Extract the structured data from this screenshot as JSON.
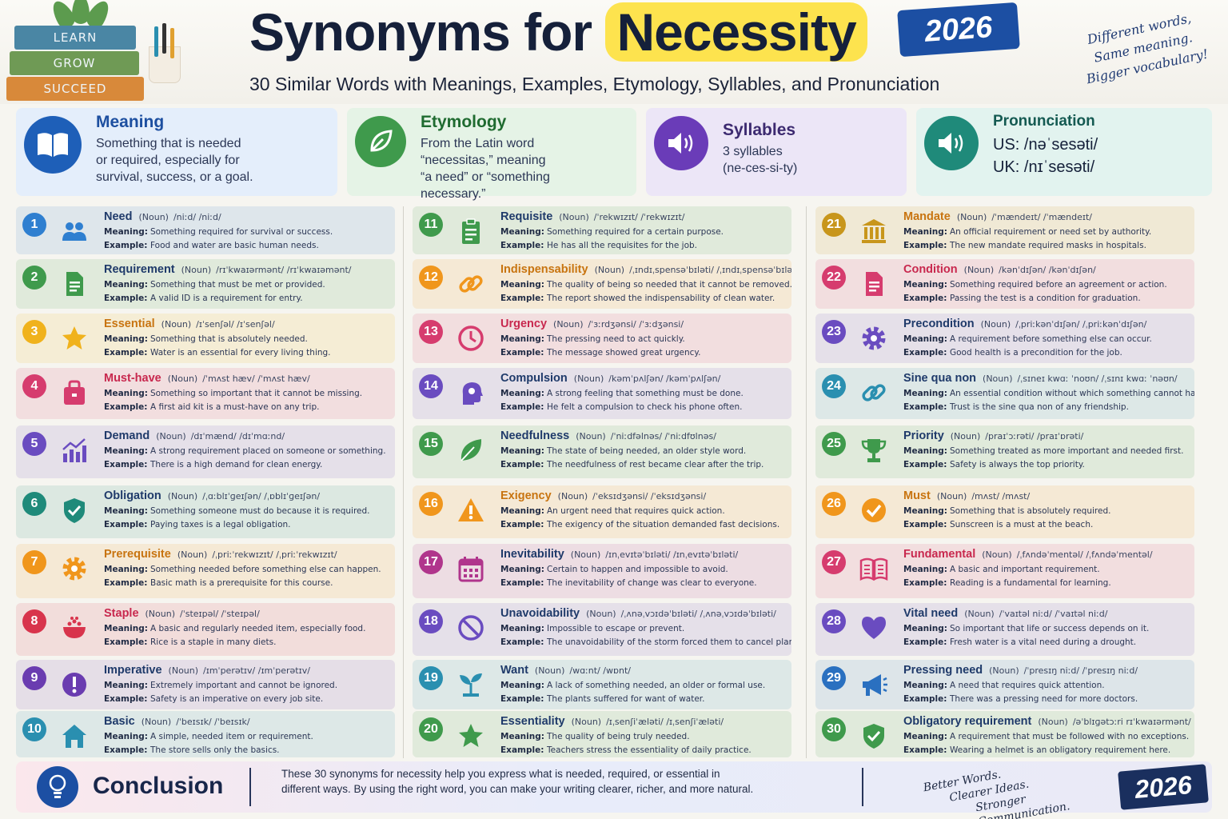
{
  "header": {
    "books": [
      "LEARN",
      "GROW",
      "SUCCEED"
    ],
    "title_pre": "Synonyms for ",
    "title_highlight": "Necessity",
    "year": "2026",
    "subtitle": "30 Similar Words with Meanings, Examples, Etymology, Syllables, and Pronunciation",
    "note": [
      "Different words,",
      "Same meaning.",
      "Bigger vocabulary!"
    ]
  },
  "info": {
    "meaning": {
      "title": "Meaning",
      "lines": [
        "Something that is needed",
        "or required, especially for",
        "survival, success, or a goal."
      ]
    },
    "etymology": {
      "title": "Etymology",
      "lines": [
        "From the Latin word",
        "“necessitas,” meaning",
        "“a need” or “something",
        "necessary.”"
      ]
    },
    "syllables": {
      "title": "Syllables",
      "lines": [
        "3 syllables",
        "(ne-ces-si-ty)"
      ]
    },
    "pronunciation": {
      "title": "Pronunciation",
      "us": "US:  /nəˈsesəti/",
      "uk": "UK:  /nɪˈsesəti/"
    }
  },
  "labels": {
    "meaning": "Meaning:",
    "example": "Example:"
  },
  "words": [
    {
      "n": "1",
      "w": "Need",
      "pos": "(Noun)",
      "ipa": "/niːd/   /niːd/",
      "m": "Something required for survival or success.",
      "e": "Food and water are basic human needs.",
      "c": "#2f7fd0",
      "icon": "people-icon"
    },
    {
      "n": "2",
      "w": "Requirement",
      "pos": "(Noun)",
      "ipa": "/rɪˈkwaɪərmənt/   /rɪˈkwaɪəmənt/",
      "m": "Something that must be met or provided.",
      "e": "A valid ID is a requirement for entry.",
      "c": "#3f9a4c",
      "icon": "document-icon"
    },
    {
      "n": "3",
      "w": "Essential",
      "pos": "(Noun)",
      "ipa": "/ɪˈsenʃəl/   /ɪˈsenʃəl/",
      "m": "Something that is absolutely needed.",
      "e": "Water is an essential for every living thing.",
      "c": "#f0b21c",
      "icon": "star-icon"
    },
    {
      "n": "4",
      "w": "Must-have",
      "pos": "(Noun)",
      "ipa": "/ˈmʌst hæv/   /ˈmʌst hæv/",
      "m": "Something so important that it cannot be missing.",
      "e": "A first aid kit is a must-have on any trip.",
      "c": "#d63c6e",
      "icon": "bag-icon"
    },
    {
      "n": "5",
      "w": "Demand",
      "pos": "(Noun)",
      "ipa": "/dɪˈmænd/   /dɪˈmɑːnd/",
      "m": "A strong requirement placed on someone or something.",
      "e": "There is a high demand for clean energy.",
      "c": "#6a4cc0",
      "icon": "chart-icon"
    },
    {
      "n": "6",
      "w": "Obligation",
      "pos": "(Noun)",
      "ipa": "/ˌɑːblɪˈɡeɪʃən/   /ˌɒblɪˈɡeɪʃən/",
      "m": "Something someone must do because it is required.",
      "e": "Paying taxes is a legal obligation.",
      "c": "#1f8a7a",
      "icon": "shield-icon"
    },
    {
      "n": "7",
      "w": "Prerequisite",
      "pos": "(Noun)",
      "ipa": "/ˌpriːˈrekwɪzɪt/   /ˌpriːˈrekwɪzɪt/",
      "m": "Something needed before something else can happen.",
      "e": "Basic math is a prerequisite for this course.",
      "c": "#f0961c",
      "icon": "gear-icon"
    },
    {
      "n": "8",
      "w": "Staple",
      "pos": "(Noun)",
      "ipa": "/ˈsteɪpəl/   /ˈsteɪpəl/",
      "m": "A basic and regularly needed item, especially food.",
      "e": "Rice is a staple in many diets.",
      "c": "#d8344c",
      "icon": "bowl-icon"
    },
    {
      "n": "9",
      "w": "Imperative",
      "pos": "(Noun)",
      "ipa": "/ɪmˈperətɪv/   /ɪmˈperətɪv/",
      "m": "Extremely important and cannot be ignored.",
      "e": "Safety is an imperative on every job site.",
      "c": "#6a3cb0",
      "icon": "exclamation-icon"
    },
    {
      "n": "10",
      "w": "Basic",
      "pos": "(Noun)",
      "ipa": "/ˈbeɪsɪk/   /ˈbeɪsɪk/",
      "m": "A simple, needed item or requirement.",
      "e": "The store sells only the basics.",
      "c": "#2a8fb0",
      "icon": "home-icon"
    },
    {
      "n": "11",
      "w": "Requisite",
      "pos": "(Noun)",
      "ipa": "/ˈrekwɪzɪt/   /ˈrekwɪzɪt/",
      "m": "Something required for a certain purpose.",
      "e": "He has all the requisites for the job.",
      "c": "#3f9a4c",
      "icon": "clipboard-icon"
    },
    {
      "n": "12",
      "w": "Indispensability",
      "pos": "(Noun)",
      "ipa": "/ˌɪndɪˌspensəˈbɪləti/   /ˌɪndɪˌspensəˈbɪləti/",
      "m": "The quality of being so needed that it cannot be removed.",
      "e": "The report showed the indispensability of clean water.",
      "c": "#f0961c",
      "icon": "link-icon"
    },
    {
      "n": "13",
      "w": "Urgency",
      "pos": "(Noun)",
      "ipa": "/ˈɜːrdʒənsi/   /ˈɜːdʒənsi/",
      "m": "The pressing need to act quickly.",
      "e": "The message showed great urgency.",
      "c": "#d63c6e",
      "icon": "clock-icon"
    },
    {
      "n": "14",
      "w": "Compulsion",
      "pos": "(Noun)",
      "ipa": "/kəmˈpʌlʃən/   /kəmˈpʌlʃən/",
      "m": "A strong feeling that something must be done.",
      "e": "He felt a compulsion to check his phone often.",
      "c": "#6a4cc0",
      "icon": "head-icon"
    },
    {
      "n": "15",
      "w": "Needfulness",
      "pos": "(Noun)",
      "ipa": "/ˈniːdfəlnəs/   /ˈniːdfʊlnəs/",
      "m": "The state of being needed, an older style word.",
      "e": "The needfulness of rest became clear after the trip.",
      "c": "#3f9a4c",
      "icon": "leaf-icon"
    },
    {
      "n": "16",
      "w": "Exigency",
      "pos": "(Noun)",
      "ipa": "/ˈeksɪdʒənsi/   /ˈeksɪdʒənsi/",
      "m": "An urgent need that requires quick action.",
      "e": "The exigency of the situation demanded fast decisions.",
      "c": "#f0961c",
      "icon": "warning-icon"
    },
    {
      "n": "17",
      "w": "Inevitability",
      "pos": "(Noun)",
      "ipa": "/ɪnˌevɪtəˈbɪləti/   /ɪnˌevɪtəˈbɪləti/",
      "m": "Certain to happen and impossible to avoid.",
      "e": "The inevitability of change was clear to everyone.",
      "c": "#b0358c",
      "icon": "calendar-icon"
    },
    {
      "n": "18",
      "w": "Unavoidability",
      "pos": "(Noun)",
      "ipa": "/ˌʌnəˌvɔɪdəˈbɪləti/   /ˌʌnəˌvɔɪdəˈbɪləti/",
      "m": "Impossible to escape or prevent.",
      "e": "The unavoidability of the storm forced them to cancel plans.",
      "c": "#6a4cc0",
      "icon": "prohibited-icon"
    },
    {
      "n": "19",
      "w": "Want",
      "pos": "(Noun)",
      "ipa": "/wɑːnt/   /wɒnt/",
      "m": "A lack of something needed, an older or formal use.",
      "e": "The plants suffered for want of water.",
      "c": "#2a8fb0",
      "icon": "sprout-icon"
    },
    {
      "n": "20",
      "w": "Essentiality",
      "pos": "(Noun)",
      "ipa": "/ɪˌsenʃiˈæləti/   /ɪˌsenʃiˈæləti/",
      "m": "The quality of being truly needed.",
      "e": "Teachers stress the essentiality of daily practice.",
      "c": "#3f9a4c",
      "icon": "star-icon"
    },
    {
      "n": "21",
      "w": "Mandate",
      "pos": "(Noun)",
      "ipa": "/ˈmændeɪt/   /ˈmændeɪt/",
      "m": "An official requirement or need set by authority.",
      "e": "The new mandate required masks in hospitals.",
      "c": "#c8961c",
      "icon": "building-icon"
    },
    {
      "n": "22",
      "w": "Condition",
      "pos": "(Noun)",
      "ipa": "/kənˈdɪʃən/   /kənˈdɪʃən/",
      "m": "Something required before an agreement or action.",
      "e": "Passing the test is a condition for graduation.",
      "c": "#d63c6e",
      "icon": "document-icon"
    },
    {
      "n": "23",
      "w": "Precondition",
      "pos": "(Noun)",
      "ipa": "/ˌpriːkənˈdɪʃən/   /ˌpriːkənˈdɪʃən/",
      "m": "A requirement before something else can occur.",
      "e": "Good health is a precondition for the job.",
      "c": "#6a4cc0",
      "icon": "gear-icon"
    },
    {
      "n": "24",
      "w": "Sine qua non",
      "pos": "(Noun)",
      "ipa": "/ˌsɪneɪ kwɑː ˈnoʊn/   /ˌsɪnɪ kwɑː ˈnəʊn/",
      "m": "An essential condition without which something cannot happen.",
      "e": "Trust is the sine qua non of any friendship.",
      "c": "#2a8fb0",
      "icon": "link-icon"
    },
    {
      "n": "25",
      "w": "Priority",
      "pos": "(Noun)",
      "ipa": "/praɪˈɔːrəti/   /praɪˈɒrəti/",
      "m": "Something treated as more important and needed first.",
      "e": "Safety is always the top priority.",
      "c": "#3f9a4c",
      "icon": "trophy-icon"
    },
    {
      "n": "26",
      "w": "Must",
      "pos": "(Noun)",
      "ipa": "/mʌst/   /mʌst/",
      "m": "Something that is absolutely required.",
      "e": "Sunscreen is a must at the beach.",
      "c": "#f0961c",
      "icon": "check-icon"
    },
    {
      "n": "27",
      "w": "Fundamental",
      "pos": "(Noun)",
      "ipa": "/ˌfʌndəˈmentəl/   /ˌfʌndəˈmentəl/",
      "m": "A basic and important requirement.",
      "e": "Reading is a fundamental for learning.",
      "c": "#d63c6e",
      "icon": "book-icon"
    },
    {
      "n": "28",
      "w": "Vital need",
      "pos": "(Noun)",
      "ipa": "/ˈvaɪtəl niːd/   /ˈvaɪtəl niːd/",
      "m": "So important that life or success depends on it.",
      "e": "Fresh water is a vital need during a drought.",
      "c": "#6a4cc0",
      "icon": "heart-icon"
    },
    {
      "n": "29",
      "w": "Pressing need",
      "pos": "(Noun)",
      "ipa": "/ˈpresɪŋ niːd/   /ˈpresɪŋ niːd/",
      "m": "A need that requires quick attention.",
      "e": "There was a pressing need for more doctors.",
      "c": "#2a70c0",
      "icon": "megaphone-icon"
    },
    {
      "n": "30",
      "w": "Obligatory requirement",
      "pos": "(Noun)",
      "ipa": "/əˈblɪɡətɔːri rɪˈkwaɪərmənt/",
      "m": "A requirement that must be followed with no exceptions.",
      "e": "Wearing a helmet is an obligatory requirement here.",
      "c": "#3f9a4c",
      "icon": "shield-icon"
    }
  ],
  "conclusion": {
    "title": "Conclusion",
    "text": "These 30 synonyms for necessity help you express what is needed, required, or essential in different ways. By using the right word, you can make your writing clearer, richer, and more natural.",
    "hand": [
      "Better Words.",
      "Clearer Ideas.",
      "Stronger Communication."
    ],
    "year": "2026"
  }
}
